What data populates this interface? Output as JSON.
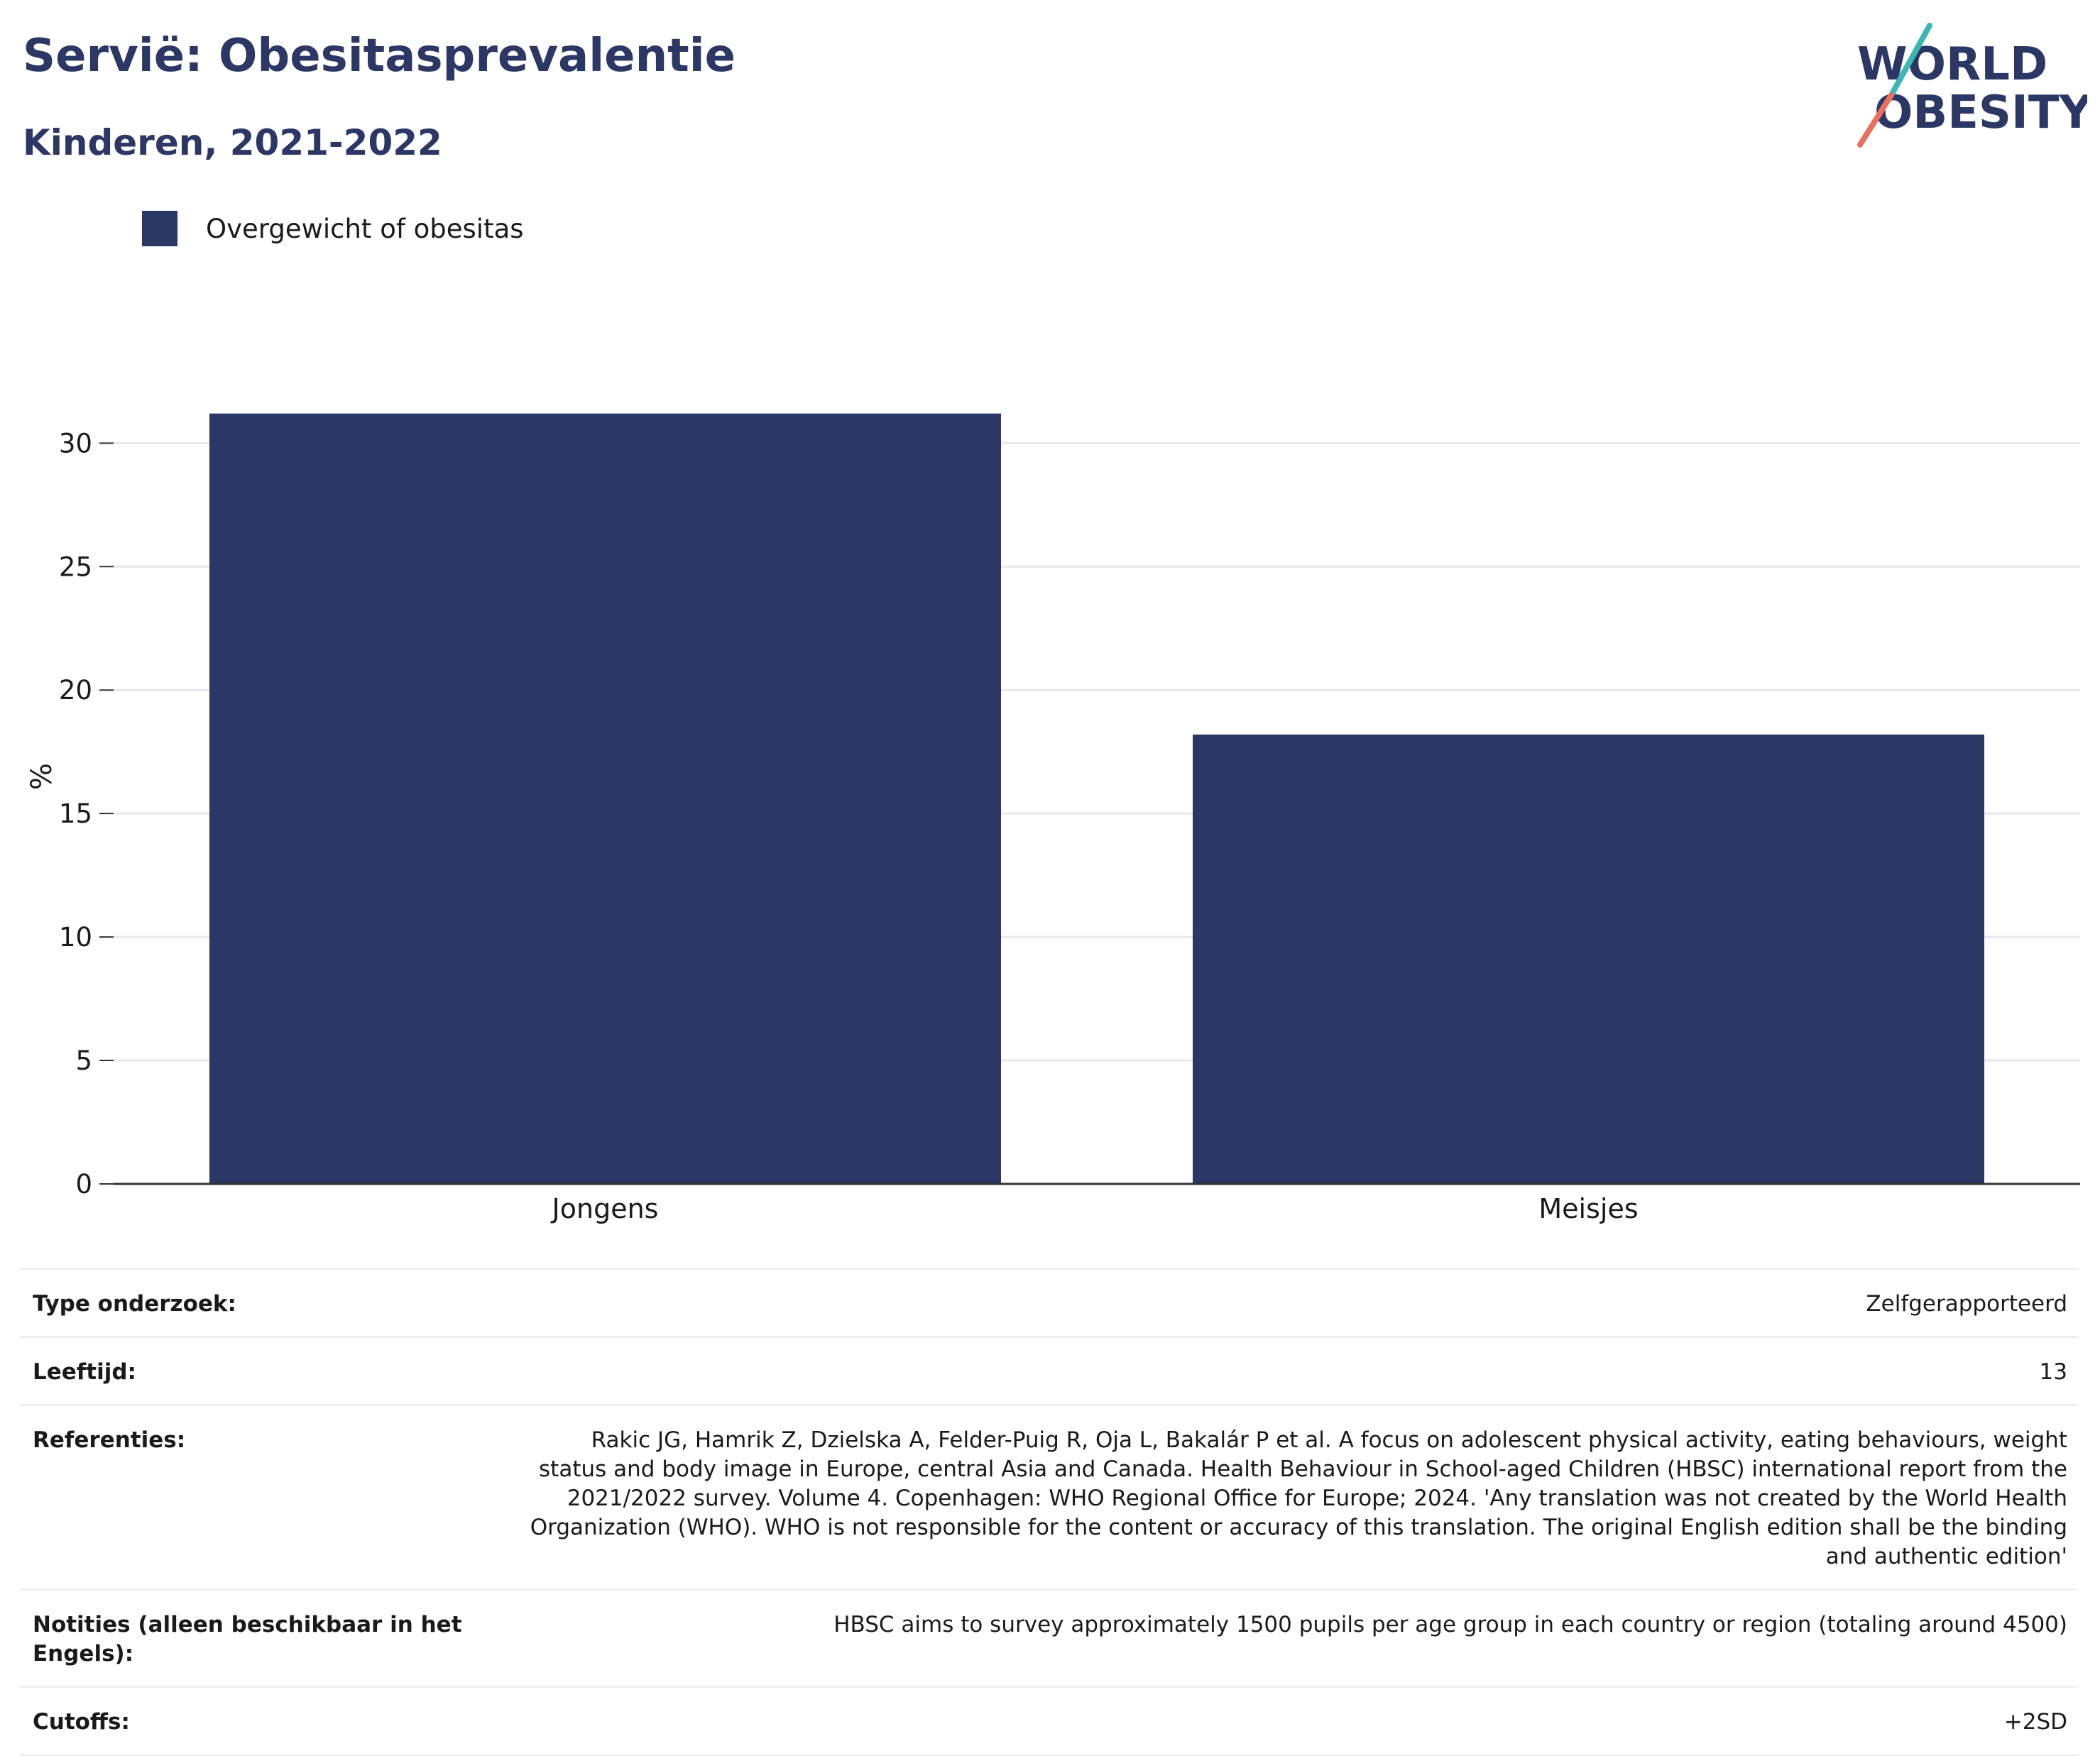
{
  "header": {
    "title": "Servië: Obesitasprevalentie",
    "subtitle": "Kinderen, 2021-2022"
  },
  "logo": {
    "line1": "WORLD",
    "line2": "OBESITY"
  },
  "colors": {
    "bar": "#2b3764",
    "title": "#2b3764",
    "grid": "#e6e8ee",
    "axis": "#333333",
    "logo_teal": "#3ab7b4",
    "logo_coral": "#e8705c"
  },
  "chart_data": {
    "type": "bar",
    "categories": [
      "Jongens",
      "Meisjes"
    ],
    "series": [
      {
        "name": "Overgewicht of obesitas",
        "values": [
          31.2,
          18.2
        ]
      }
    ],
    "title": "Servië: Obesitasprevalentie",
    "subtitle": "Kinderen, 2021-2022",
    "xlabel": "",
    "ylabel": "%",
    "ylim": [
      0,
      33
    ],
    "yticks": [
      0,
      5,
      10,
      15,
      20,
      25,
      30
    ],
    "grid": true,
    "legend": "top-left"
  },
  "info": [
    {
      "key": "Type onderzoek:",
      "value": "Zelfgerapporteerd"
    },
    {
      "key": "Leeftijd:",
      "value": "13"
    },
    {
      "key": "Referenties:",
      "value": "Rakic JG, Hamrik Z, Dzielska A, Felder-Puig R, Oja L, Bakalár P et al. A focus on adolescent physical activity, eating behaviours, weight status and body image in Europe, central Asia and Canada. Health Behaviour in School-aged Children (HBSC) international report from the 2021/2022 survey. Volume 4. Copenhagen: WHO Regional Office for Europe; 2024. 'Any translation was not created by the World Health Organization (WHO). WHO is not responsible for the content or accuracy of this translation. The original English edition shall be the binding and authentic edition'"
    },
    {
      "key": "Notities (alleen beschikbaar in het Engels):",
      "value": "HBSC aims to survey approximately 1500 pupils per age group in each country or region (totaling around 4500)"
    },
    {
      "key": "Cutoffs:",
      "value": "+2SD"
    }
  ]
}
